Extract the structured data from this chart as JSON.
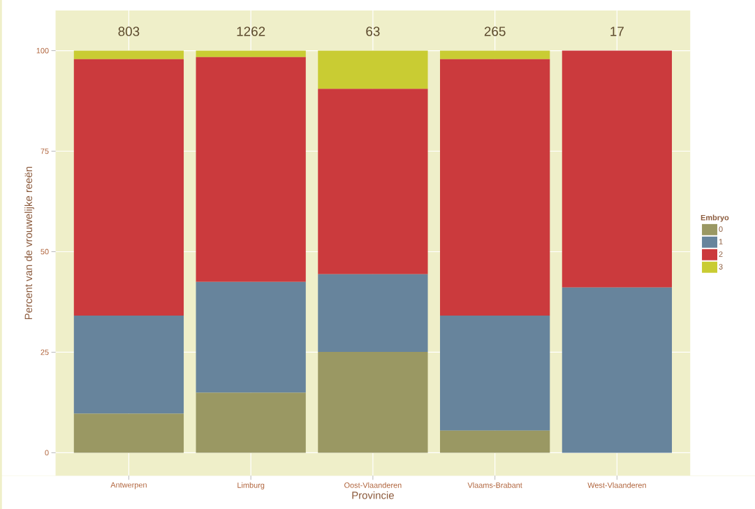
{
  "chart_data": {
    "type": "bar",
    "stacked": true,
    "xlabel": "Provincie",
    "ylabel": "Percent van de vrouwelijke reeën",
    "legend_title": "Embryo",
    "legend": "right",
    "grid": true,
    "categories": [
      "Antwerpen",
      "Limburg",
      "Oost-Vlaanderen",
      "Vlaams-Brabant",
      "West-Vlaanderen"
    ],
    "series": [
      {
        "name": "0",
        "color": "#9a9863",
        "values": [
          9.7,
          14.9,
          25.1,
          5.5,
          0
        ]
      },
      {
        "name": "1",
        "color": "#67849c",
        "values": [
          24.4,
          27.6,
          19.3,
          28.6,
          41.1
        ]
      },
      {
        "name": "2",
        "color": "#cb3a3d",
        "values": [
          63.8,
          55.9,
          46.1,
          63.8,
          58.9
        ]
      },
      {
        "name": "3",
        "color": "#c9cc33",
        "values": [
          2.1,
          1.6,
          9.5,
          2.1,
          0
        ]
      }
    ],
    "ylim": [
      -5.7,
      110
    ],
    "yticks": [
      0,
      25,
      50,
      75,
      100
    ],
    "annotations": [
      "803",
      "1262",
      "63",
      "265",
      "17"
    ]
  }
}
